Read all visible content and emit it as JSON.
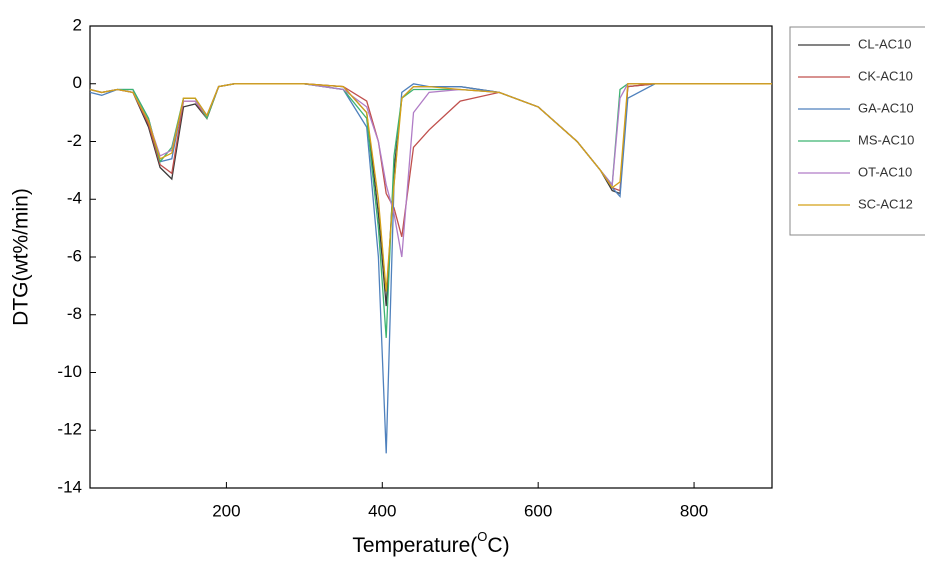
{
  "chart_data": {
    "type": "line",
    "x_label": {
      "prefix": "Temperature(",
      "sup": "O",
      "suffix": "C)"
    },
    "y_label": "DTG(wt%/min)",
    "x": [
      25,
      40,
      60,
      80,
      100,
      115,
      130,
      145,
      160,
      175,
      190,
      210,
      250,
      300,
      350,
      380,
      395,
      405,
      415,
      425,
      440,
      460,
      500,
      550,
      600,
      650,
      680,
      695,
      705,
      715,
      750,
      800,
      900
    ],
    "series": [
      {
        "name": "CL-AC10",
        "color": "#3a3a3a",
        "values": [
          -0.2,
          -0.3,
          -0.2,
          -0.3,
          -1.5,
          -2.9,
          -3.3,
          -0.8,
          -0.7,
          -1.2,
          -0.1,
          0,
          0,
          0,
          -0.1,
          -1.0,
          -4.5,
          -7.7,
          -3.0,
          -0.5,
          -0.1,
          -0.1,
          -0.1,
          -0.3,
          -0.8,
          -2.0,
          -3.0,
          -3.7,
          -3.8,
          -0.1,
          0,
          0,
          0
        ]
      },
      {
        "name": "CK-AC10",
        "color": "#c0504d",
        "values": [
          -0.2,
          -0.3,
          -0.2,
          -0.3,
          -1.4,
          -2.8,
          -3.1,
          -0.6,
          -0.6,
          -1.2,
          -0.1,
          0,
          0,
          0,
          -0.1,
          -0.6,
          -2.0,
          -3.8,
          -4.3,
          -5.3,
          -2.2,
          -1.6,
          -0.6,
          -0.3,
          -0.8,
          -2.0,
          -3.0,
          -3.6,
          -3.7,
          -0.1,
          0,
          0,
          0
        ]
      },
      {
        "name": "GA-AC10",
        "color": "#4f81bd",
        "values": [
          -0.3,
          -0.4,
          -0.2,
          -0.2,
          -1.2,
          -2.7,
          -2.6,
          -0.5,
          -0.5,
          -1.1,
          -0.1,
          0,
          0,
          0,
          -0.2,
          -1.5,
          -6.0,
          -12.8,
          -3.5,
          -0.3,
          0,
          -0.1,
          -0.1,
          -0.3,
          -0.8,
          -2.0,
          -3.0,
          -3.6,
          -3.9,
          -0.5,
          0,
          0,
          0
        ]
      },
      {
        "name": "MS-AC10",
        "color": "#3cb371",
        "values": [
          -0.2,
          -0.3,
          -0.2,
          -0.2,
          -1.2,
          -2.7,
          -2.2,
          -0.5,
          -0.5,
          -1.2,
          -0.1,
          0,
          0,
          0,
          -0.2,
          -1.2,
          -5.0,
          -8.8,
          -2.5,
          -0.5,
          -0.2,
          -0.2,
          -0.2,
          -0.3,
          -0.8,
          -2.0,
          -3.0,
          -3.5,
          -0.2,
          0,
          0,
          0,
          0
        ]
      },
      {
        "name": "OT-AC10",
        "color": "#b07cc6",
        "values": [
          -0.2,
          -0.3,
          -0.2,
          -0.3,
          -1.3,
          -2.5,
          -2.3,
          -0.6,
          -0.6,
          -1.1,
          -0.1,
          0,
          0,
          0,
          -0.2,
          -0.8,
          -2.0,
          -3.5,
          -4.5,
          -6.0,
          -1.0,
          -0.3,
          -0.2,
          -0.3,
          -0.8,
          -2.0,
          -3.0,
          -3.5,
          -0.5,
          0,
          0,
          0,
          0
        ]
      },
      {
        "name": "SC-AC12",
        "color": "#d4a017",
        "values": [
          -0.2,
          -0.3,
          -0.2,
          -0.3,
          -1.3,
          -2.6,
          -2.4,
          -0.5,
          -0.5,
          -1.1,
          -0.1,
          0,
          0,
          0,
          -0.1,
          -1.0,
          -4.0,
          -7.2,
          -3.5,
          -0.5,
          -0.1,
          -0.1,
          -0.2,
          -0.3,
          -0.8,
          -2.0,
          -3.0,
          -3.6,
          -3.4,
          0,
          0,
          0,
          0
        ]
      }
    ],
    "xlim": [
      25,
      900
    ],
    "xticks": [
      200,
      400,
      600,
      800
    ],
    "ylim": [
      -14,
      2
    ],
    "yticks": [
      -14,
      -12,
      -10,
      -8,
      -6,
      -4,
      -2,
      0,
      2
    ],
    "grid": false,
    "legend": "right"
  }
}
